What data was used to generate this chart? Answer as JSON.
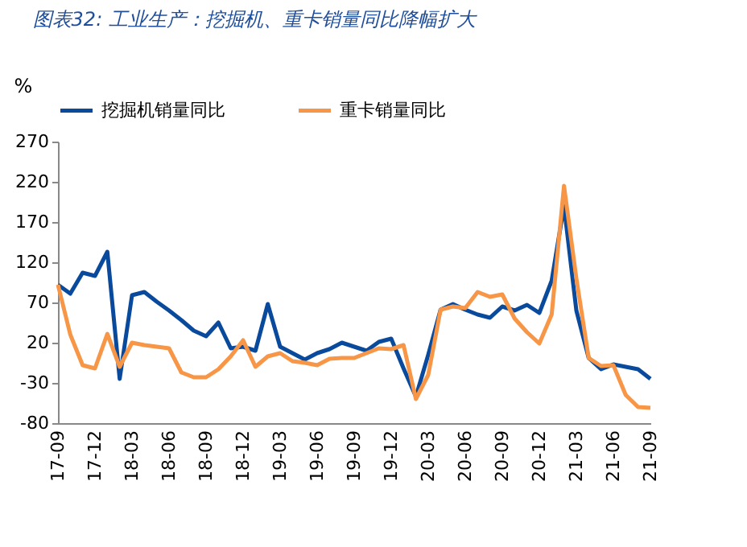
{
  "chart_data": {
    "type": "line",
    "title": "图表32: 工业生产：挖掘机、重卡销量同比降幅扩大",
    "ylabel": "%",
    "categories": [
      "17-09",
      null,
      null,
      "17-12",
      null,
      null,
      "18-03",
      null,
      null,
      "18-06",
      null,
      null,
      "18-09",
      null,
      null,
      "18-12",
      null,
      null,
      "19-03",
      null,
      null,
      "19-06",
      null,
      null,
      "19-09",
      null,
      null,
      "19-12",
      null,
      null,
      "20-03",
      null,
      null,
      "20-06",
      null,
      null,
      "20-09",
      null,
      null,
      "20-12",
      null,
      null,
      "21-03",
      null,
      null,
      "21-06",
      null,
      null,
      "21-09"
    ],
    "series": [
      {
        "name": "挖掘机销量同比",
        "color": "#0a4a9c",
        "values": [
          92,
          81,
          107,
          103,
          133,
          -25,
          79,
          83,
          71,
          60,
          48,
          35,
          28,
          45,
          13,
          15,
          10,
          68,
          15,
          7,
          -1,
          7,
          12,
          20,
          15,
          10,
          21,
          25,
          -12,
          -47,
          5,
          61,
          68,
          61,
          55,
          51,
          65,
          60,
          67,
          57,
          97,
          190,
          60,
          1,
          -13,
          -7,
          -10,
          -13,
          -25
        ]
      },
      {
        "name": "重卡销量同比",
        "color": "#f79646",
        "values": [
          92,
          30,
          -8,
          -12,
          31,
          -10,
          20,
          17,
          15,
          13,
          -17,
          -23,
          -23,
          -13,
          3,
          23,
          -10,
          3,
          7,
          -3,
          -5,
          -8,
          0,
          1,
          1,
          7,
          13,
          12,
          17,
          -50,
          -20,
          61,
          65,
          63,
          83,
          77,
          80,
          50,
          33,
          19,
          55,
          215,
          100,
          1,
          -9,
          -8,
          -45,
          -60,
          -61
        ]
      }
    ],
    "ylim": [
      -80,
      270
    ],
    "yticks": [
      -80,
      -30,
      20,
      70,
      120,
      170,
      220,
      270
    ],
    "grid": false,
    "legend": "top",
    "marker": "none",
    "line_style": "solid"
  }
}
